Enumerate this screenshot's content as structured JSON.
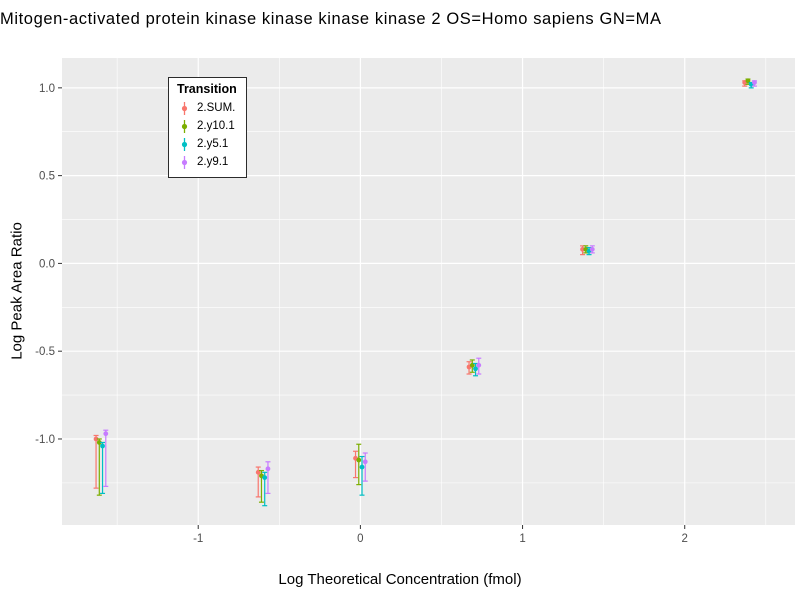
{
  "chart_data": {
    "type": "scatter",
    "title": "Mitogen-activated protein kinase kinase kinase kinase 2 OS=Homo sapiens GN=MA",
    "xlabel": "Log Theoretical Concentration (fmol)",
    "ylabel": "Log Peak Area Ratio",
    "xlim": [
      -1.84,
      2.68
    ],
    "ylim": [
      -1.49,
      1.17
    ],
    "panel_bg": "#EBEBEB",
    "grid": true,
    "gridline_color": "#FFFFFF",
    "tick_label_color": "#4D4D4D",
    "x_ticks": [
      {
        "v": -1,
        "label": "-1"
      },
      {
        "v": 0,
        "label": "0"
      },
      {
        "v": 1,
        "label": "1"
      },
      {
        "v": 2,
        "label": "2"
      }
    ],
    "y_ticks": [
      {
        "v": 1.0,
        "label": "1.0"
      },
      {
        "v": 0.5,
        "label": "0.5"
      },
      {
        "v": 0.0,
        "label": "0.0"
      },
      {
        "v": -0.5,
        "label": "-0.5"
      },
      {
        "v": -1.0,
        "label": "-1.0"
      }
    ],
    "x": [
      -1.6,
      -0.6,
      0.0,
      0.7,
      1.4,
      2.4
    ],
    "dodge": [
      -0.03,
      -0.01,
      0.01,
      0.03
    ],
    "legend": {
      "title": "Transition",
      "position": "top-left-inside",
      "entries": [
        {
          "label": "2.SUM.",
          "color": "#F8766D"
        },
        {
          "label": "2.y10.1",
          "color": "#7CAE00"
        },
        {
          "label": "2.y5.1",
          "color": "#00BFC4"
        },
        {
          "label": "2.y9.1",
          "color": "#C77CFF"
        }
      ]
    },
    "series": [
      {
        "name": "2.SUM.",
        "color": "#F8766D",
        "y": [
          -1.0,
          -1.19,
          -1.11,
          -0.59,
          0.08,
          1.03
        ],
        "y_lo": [
          -1.28,
          -1.33,
          -1.22,
          -0.63,
          0.05,
          1.01
        ],
        "y_hi": [
          -0.98,
          -1.16,
          -1.07,
          -0.56,
          0.1,
          1.04
        ]
      },
      {
        "name": "2.y10.1",
        "color": "#7CAE00",
        "y": [
          -1.02,
          -1.21,
          -1.12,
          -0.58,
          0.08,
          1.04
        ],
        "y_lo": [
          -1.32,
          -1.36,
          -1.26,
          -0.62,
          0.06,
          1.02
        ],
        "y_hi": [
          -1.0,
          -1.18,
          -1.03,
          -0.55,
          0.1,
          1.05
        ]
      },
      {
        "name": "2.y5.1",
        "color": "#00BFC4",
        "y": [
          -1.04,
          -1.22,
          -1.16,
          -0.6,
          0.07,
          1.02
        ],
        "y_lo": [
          -1.31,
          -1.38,
          -1.32,
          -0.64,
          0.05,
          1.0
        ],
        "y_hi": [
          -1.02,
          -1.19,
          -1.1,
          -0.57,
          0.09,
          1.03
        ]
      },
      {
        "name": "2.y9.1",
        "color": "#C77CFF",
        "y": [
          -0.97,
          -1.17,
          -1.13,
          -0.58,
          0.08,
          1.03
        ],
        "y_lo": [
          -1.27,
          -1.31,
          -1.24,
          -0.63,
          0.06,
          1.01
        ],
        "y_hi": [
          -0.95,
          -1.13,
          -1.08,
          -0.54,
          0.1,
          1.04
        ]
      }
    ]
  }
}
